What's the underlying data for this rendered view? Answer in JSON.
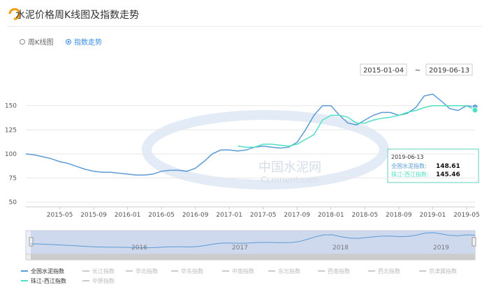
{
  "header": {
    "title": "水泥价格周K线图及指数走势",
    "tabs": [
      "周K线图",
      "指数走势"
    ],
    "date_from": "2015-01-04",
    "date_sep": "~",
    "date_to": "2019-06-13"
  },
  "watermark": {
    "cn": "中国水泥网",
    "en": "Ccement.com"
  },
  "chart_data": {
    "type": "line",
    "x": [
      "2015-01",
      "2015-02",
      "2015-03",
      "2015-04",
      "2015-05",
      "2015-06",
      "2015-07",
      "2015-08",
      "2015-09",
      "2015-10",
      "2015-11",
      "2015-12",
      "2016-01",
      "2016-02",
      "2016-03",
      "2016-04",
      "2016-05",
      "2016-06",
      "2016-07",
      "2016-08",
      "2016-09",
      "2016-10",
      "2016-11",
      "2016-12",
      "2017-01",
      "2017-02",
      "2017-03",
      "2017-04",
      "2017-05",
      "2017-06",
      "2017-07",
      "2017-08",
      "2017-09",
      "2017-10",
      "2017-11",
      "2017-12",
      "2018-01",
      "2018-02",
      "2018-03",
      "2018-04",
      "2018-05",
      "2018-06",
      "2018-07",
      "2018-08",
      "2018-09",
      "2018-10",
      "2018-11",
      "2018-12",
      "2019-01",
      "2019-02",
      "2019-03",
      "2019-04",
      "2019-05",
      "2019-06"
    ],
    "series": [
      {
        "name": "全国水泥指数",
        "color": "#5b9bd5",
        "values": [
          100,
          99,
          97,
          95,
          92,
          90,
          87,
          84,
          82,
          81,
          81,
          80,
          79,
          78,
          78,
          79,
          82,
          83,
          83,
          82,
          85,
          92,
          100,
          104,
          104,
          103,
          104,
          107,
          108,
          107,
          106,
          107,
          112,
          125,
          140,
          150,
          150,
          140,
          132,
          130,
          135,
          140,
          143,
          143,
          140,
          142,
          148,
          160,
          162,
          155,
          147,
          145,
          150,
          148.61
        ]
      },
      {
        "name": "珠江-西江指数",
        "color": "#4fe0c4",
        "values": [
          null,
          null,
          null,
          null,
          null,
          null,
          null,
          null,
          null,
          null,
          null,
          null,
          null,
          null,
          null,
          null,
          null,
          null,
          null,
          null,
          null,
          null,
          null,
          null,
          null,
          108,
          107,
          107,
          110,
          110,
          109,
          108,
          110,
          115,
          120,
          135,
          140,
          140,
          138,
          132,
          132,
          135,
          137,
          138,
          140,
          143,
          145,
          148,
          150,
          150,
          150,
          150,
          150,
          145.46
        ]
      }
    ],
    "legend_hidden": [
      "长江指数",
      "华北指数",
      "华东指数",
      "中南指数",
      "东北指数",
      "西南指数",
      "西北指数",
      "京津冀指数",
      "中原指数"
    ],
    "ylim": [
      45,
      170
    ],
    "yticks": [
      50,
      75,
      100,
      125,
      150
    ],
    "xticks": [
      "2015-05",
      "2015-09",
      "2016-01",
      "2016-05",
      "2016-09",
      "2017-01",
      "2017-05",
      "2017-09",
      "2018-01",
      "2018-05",
      "2018-09",
      "2019-01",
      "2019-05"
    ],
    "grid": true,
    "tooltip": {
      "date": "2019-06-13",
      "items": [
        {
          "label": "全国水泥指数:",
          "value": 148.61
        },
        {
          "label": "珠江-西江指数:",
          "value": 145.46
        }
      ]
    },
    "navigator_labels": [
      "2016",
      "2017",
      "2018",
      "2019"
    ]
  }
}
